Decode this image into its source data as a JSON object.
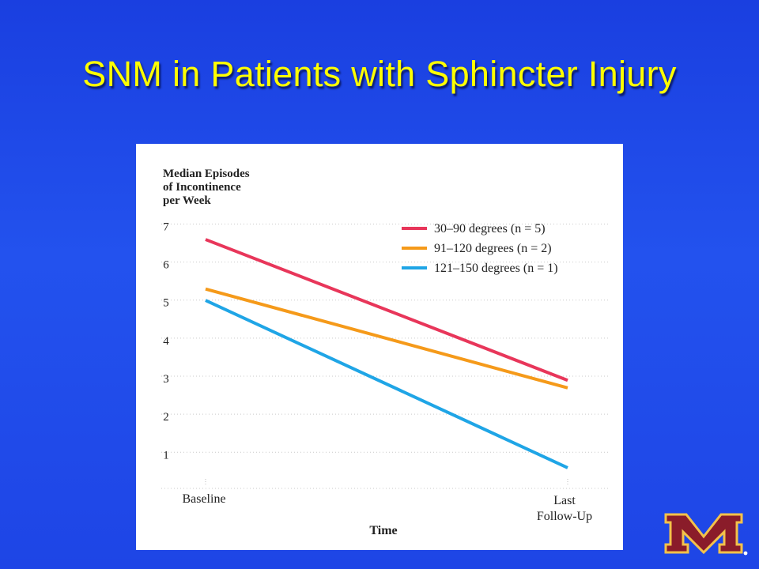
{
  "slide": {
    "title": "SNM in Patients with Sphincter Injury"
  },
  "colors": {
    "background": "#1f47e8",
    "title": "#ffff00",
    "series_red": "#e8365a",
    "series_orange": "#f59a1a",
    "series_blue": "#1fa5e6",
    "logo_maroon": "#8a1c2a",
    "logo_gold": "#f3c24a"
  },
  "logo": {
    "icon": "university-m-logo-icon"
  },
  "chart_data": {
    "type": "line",
    "ylabel_lines": [
      "Median Episodes",
      "of Incontinence",
      "per Week"
    ],
    "xlabel": "Time",
    "x_categories": [
      "Baseline",
      "Last Follow-Up"
    ],
    "x_category_lines": [
      [
        "Baseline"
      ],
      [
        "Last",
        "Follow-Up"
      ]
    ],
    "y_ticks": [
      "1",
      "2",
      "3",
      "4",
      "5",
      "6",
      "7"
    ],
    "ylim": [
      0.3,
      7.3
    ],
    "grid": true,
    "legend_position": "top-right",
    "series": [
      {
        "name": "30–90 degrees (n = 5)",
        "color": "#e8365a",
        "values": [
          6.8,
          3.1
        ]
      },
      {
        "name": "91–120 degrees (n = 2)",
        "color": "#f59a1a",
        "values": [
          5.5,
          2.9
        ]
      },
      {
        "name": "121–150 degrees (n = 1)",
        "color": "#1fa5e6",
        "values": [
          5.2,
          0.8
        ]
      }
    ]
  }
}
